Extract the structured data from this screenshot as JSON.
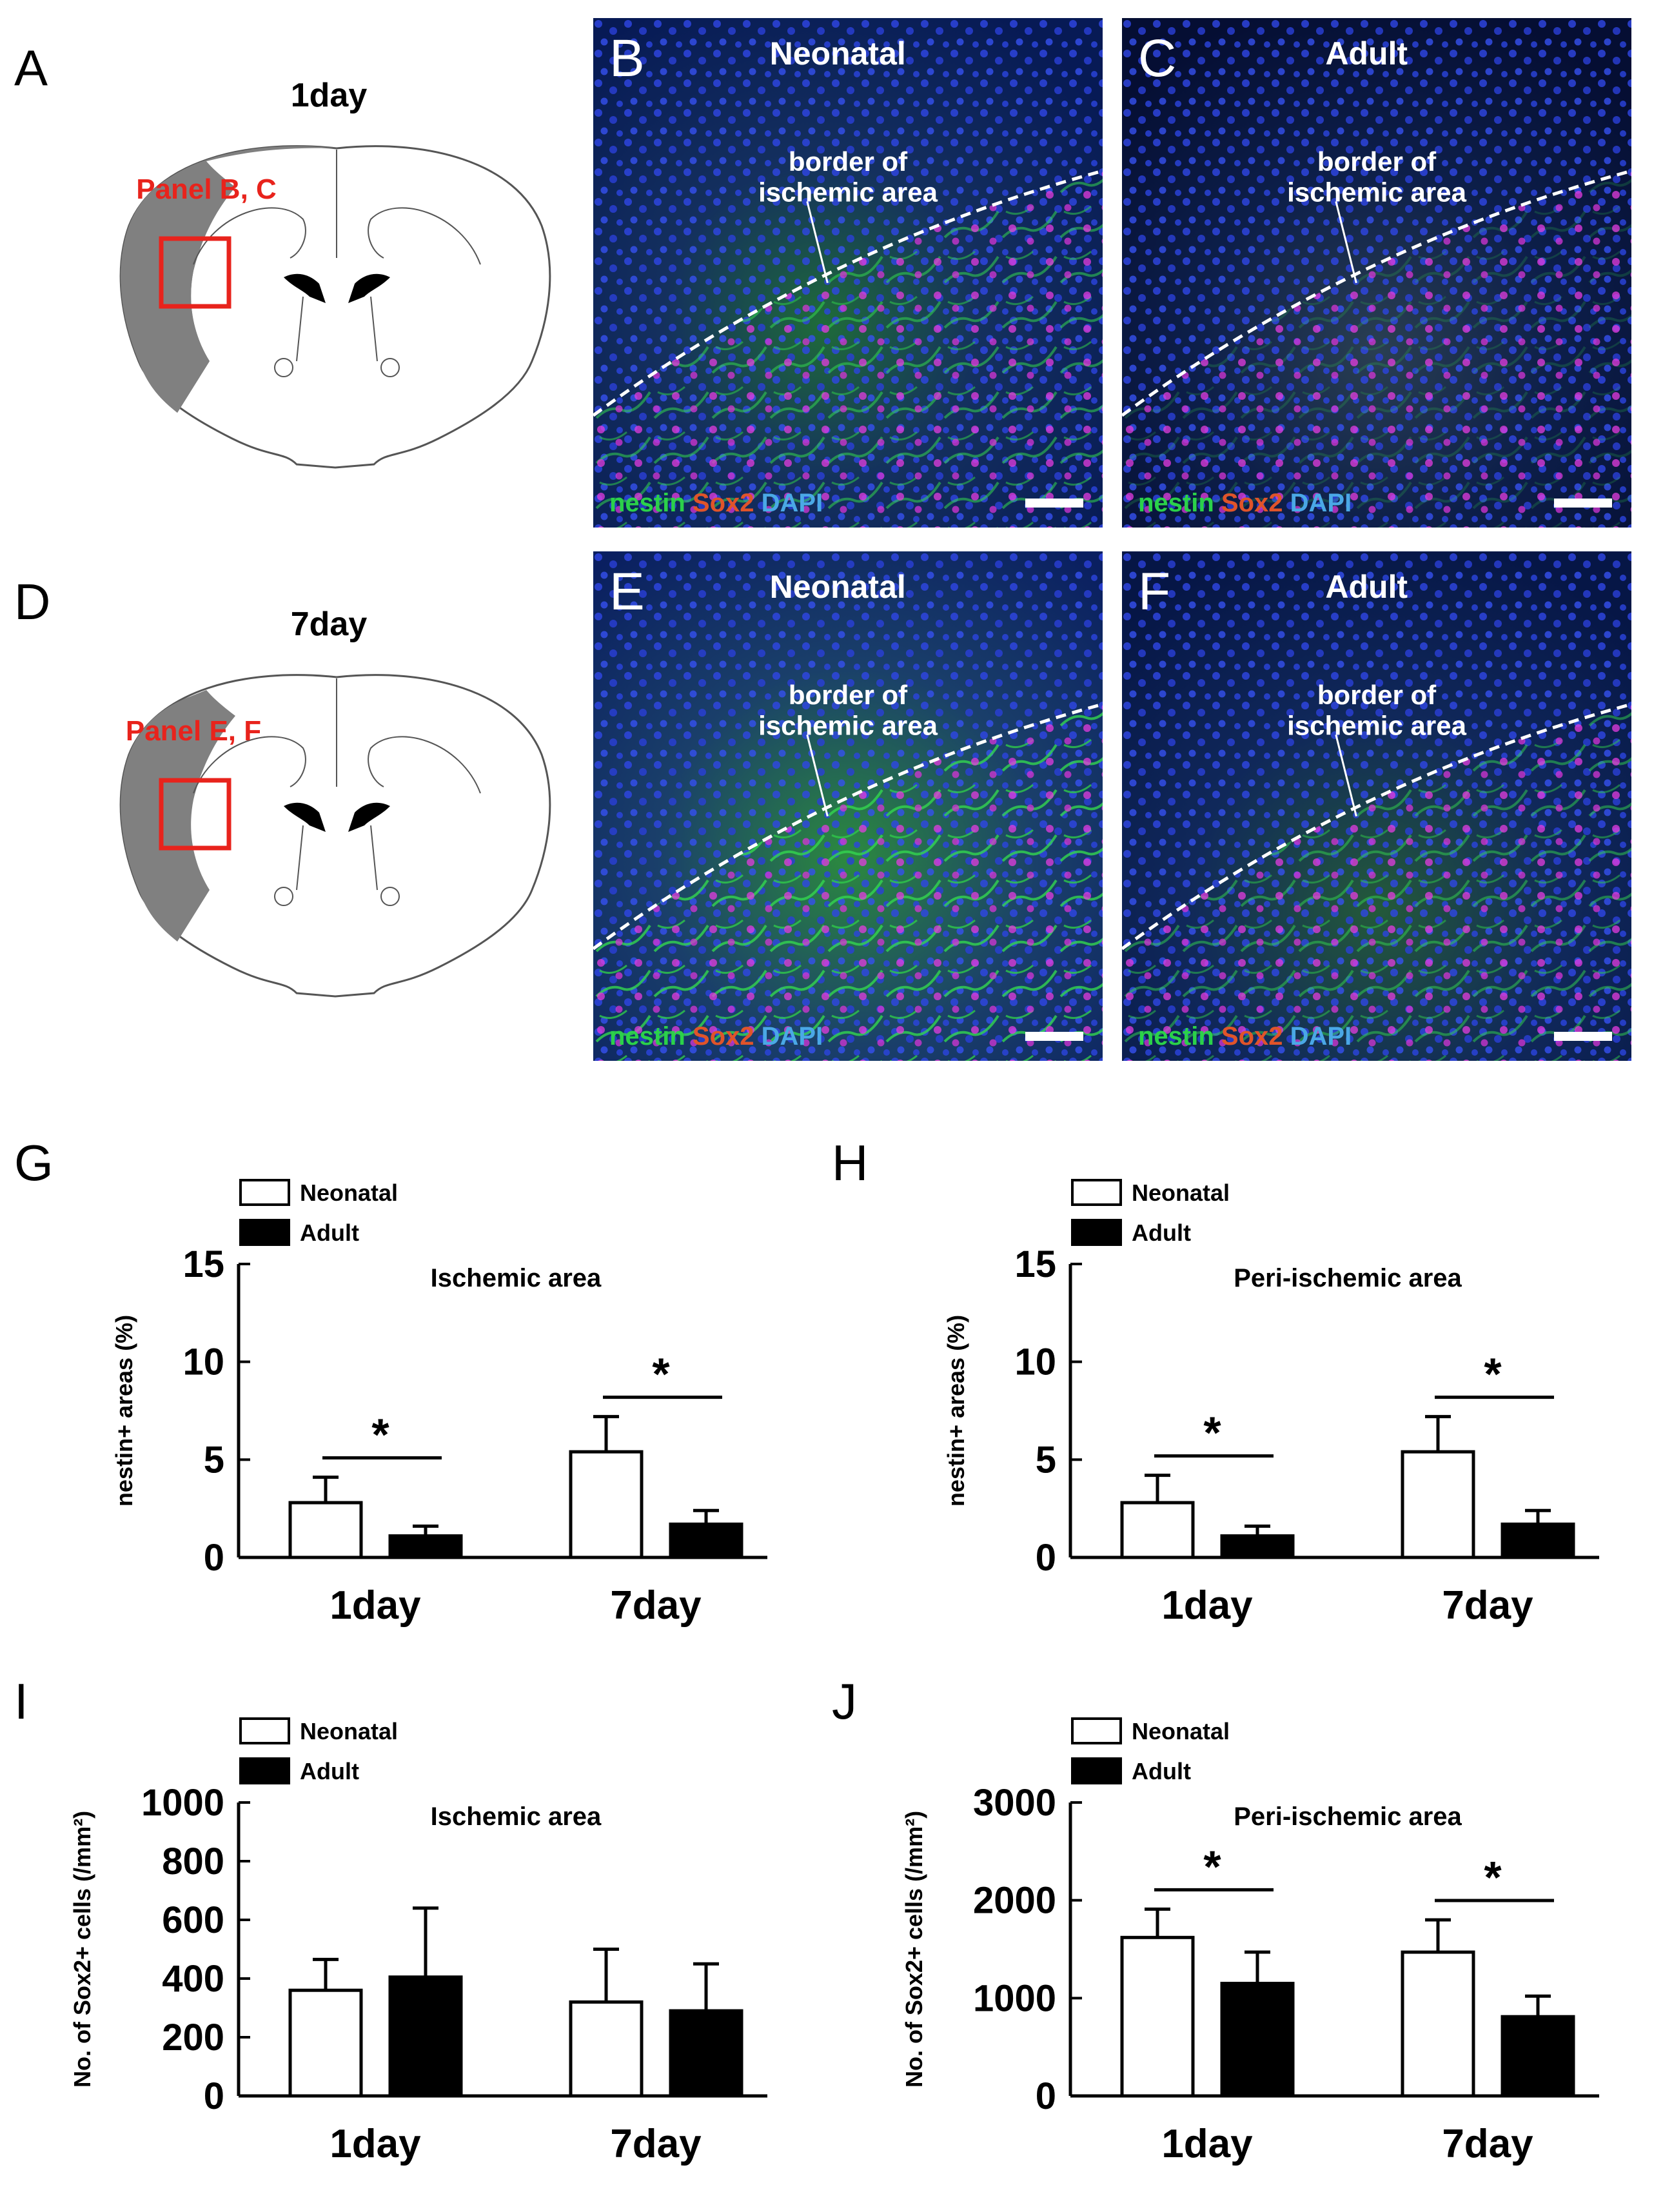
{
  "panel_letters": {
    "A": "A",
    "B": "B",
    "C": "C",
    "D": "D",
    "E": "E",
    "F": "F",
    "G": "G",
    "H": "H",
    "I": "I",
    "J": "J"
  },
  "schematics": [
    {
      "id": "A",
      "time": "1day",
      "panel_label": "Panel B, C"
    },
    {
      "id": "D",
      "time": "7day",
      "panel_label": "Panel E, F"
    }
  ],
  "micrographs": [
    {
      "id": "B",
      "title": "Neonatal",
      "border_line1": "border of",
      "border_line2": "ischemic area",
      "stain": [
        "nestin",
        "Sox2",
        "DAPI"
      ]
    },
    {
      "id": "C",
      "title": "Adult",
      "border_line1": "border of",
      "border_line2": "ischemic area",
      "stain": [
        "nestin",
        "Sox2",
        "DAPI"
      ]
    },
    {
      "id": "E",
      "title": "Neonatal",
      "border_line1": "border of",
      "border_line2": "ischemic area",
      "stain": [
        "nestin",
        "Sox2",
        "DAPI"
      ]
    },
    {
      "id": "F",
      "title": "Adult",
      "border_line1": "border of",
      "border_line2": "ischemic area",
      "stain": [
        "nestin",
        "Sox2",
        "DAPI"
      ]
    }
  ],
  "colors": {
    "nestin": "#2bd14a",
    "sox2": "#e0542a",
    "dapi": "#4aa8e6",
    "highlight": "#e8231c",
    "lesion": "#808080"
  },
  "chart_data": [
    {
      "panel": "G",
      "type": "bar",
      "title": "Ischemic area",
      "ylabel": "nestin+ areas (%)",
      "ylim": [
        0,
        15
      ],
      "yticks": [
        0,
        5,
        10,
        15
      ],
      "categories": [
        "1day",
        "7day"
      ],
      "series": [
        {
          "name": "Neonatal",
          "values": [
            2.8,
            5.4
          ],
          "errors": [
            1.3,
            1.8
          ]
        },
        {
          "name": "Adult",
          "values": [
            1.1,
            1.7
          ],
          "errors": [
            0.5,
            0.7
          ]
        }
      ],
      "significance": [
        "*",
        "*"
      ]
    },
    {
      "panel": "H",
      "type": "bar",
      "title": "Peri-ischemic area",
      "ylabel": "nestin+ areas (%)",
      "ylim": [
        0,
        15
      ],
      "yticks": [
        0,
        5,
        10,
        15
      ],
      "categories": [
        "1day",
        "7day"
      ],
      "series": [
        {
          "name": "Neonatal",
          "values": [
            2.8,
            5.4
          ],
          "errors": [
            1.4,
            1.8
          ]
        },
        {
          "name": "Adult",
          "values": [
            1.1,
            1.7
          ],
          "errors": [
            0.5,
            0.7
          ]
        }
      ],
      "significance": [
        "*",
        "*"
      ]
    },
    {
      "panel": "I",
      "type": "bar",
      "title": "Ischemic area",
      "ylabel": "No. of Sox2+ cells (/mm²)",
      "ylim": [
        0,
        1000
      ],
      "yticks": [
        0,
        200,
        400,
        600,
        800,
        1000
      ],
      "categories": [
        "1day",
        "7day"
      ],
      "series": [
        {
          "name": "Neonatal",
          "values": [
            360,
            320
          ],
          "errors": [
            105,
            180
          ]
        },
        {
          "name": "Adult",
          "values": [
            405,
            290
          ],
          "errors": [
            235,
            160
          ]
        }
      ],
      "significance": [
        "",
        ""
      ]
    },
    {
      "panel": "J",
      "type": "bar",
      "title": "Peri-ischemic area",
      "ylabel": "No. of Sox2+ cells (/mm²)",
      "ylim": [
        0,
        3000
      ],
      "yticks": [
        0,
        1000,
        2000,
        3000
      ],
      "categories": [
        "1day",
        "7day"
      ],
      "series": [
        {
          "name": "Neonatal",
          "values": [
            1620,
            1470
          ],
          "errors": [
            290,
            330
          ]
        },
        {
          "name": "Adult",
          "values": [
            1150,
            810
          ],
          "errors": [
            320,
            210
          ]
        }
      ],
      "significance": [
        "*",
        "*"
      ]
    }
  ]
}
